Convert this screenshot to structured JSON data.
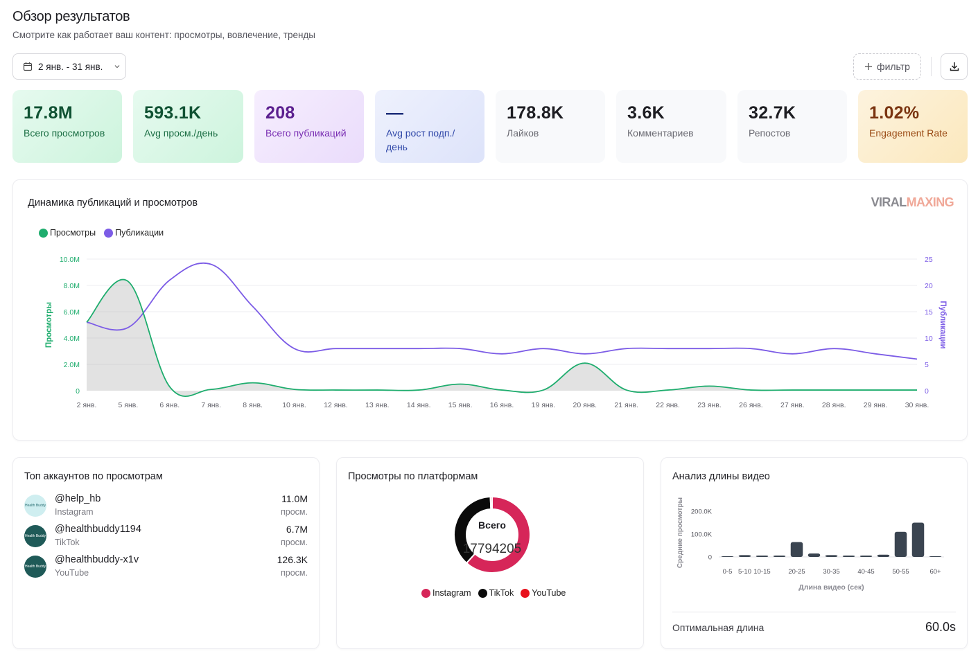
{
  "header": {
    "title": "Обзор результатов",
    "subtitle": "Смотрите как работает ваш контент: просмотры, вовлечение, тренды"
  },
  "toolbar": {
    "date_range": "2 янв. - 31 янв.",
    "filter_label": "фильтр"
  },
  "kpis": [
    {
      "value": "17.8M",
      "label": "Всего просмотров"
    },
    {
      "value": "593.1K",
      "label": "Avg просм./день"
    },
    {
      "value": "208",
      "label": "Всего публикаций"
    },
    {
      "value": "—",
      "label": "Avg рост подп./ день"
    },
    {
      "value": "178.8K",
      "label": "Лайков"
    },
    {
      "value": "3.6K",
      "label": "Комментариев"
    },
    {
      "value": "32.7K",
      "label": "Репостов"
    },
    {
      "value": "1.02%",
      "label": "Engagement Rate"
    }
  ],
  "trend_card": {
    "title": "Динамика публикаций и просмотров",
    "brand_part1": "VIRAL",
    "brand_part2": "MAXING"
  },
  "colors": {
    "views": "#1fad6e",
    "posts": "#7c5ce6",
    "instagram": "#d62659",
    "tiktok": "#0b0b0b",
    "youtube": "#e8111c",
    "bars": "#3a4450"
  },
  "chart_data": [
    {
      "type": "line",
      "title": "Динамика публикаций и просмотров",
      "categories": [
        "2 янв.",
        "5 янв.",
        "6 янв.",
        "7 янв.",
        "8 янв.",
        "10 янв.",
        "12 янв.",
        "13 янв.",
        "14 янв.",
        "15 янв.",
        "16 янв.",
        "19 янв.",
        "20 янв.",
        "21 янв.",
        "22 янв.",
        "23 янв.",
        "26 янв.",
        "27 янв.",
        "28 янв.",
        "29 янв.",
        "30 янв."
      ],
      "series": [
        {
          "name": "Просмотры",
          "axis": "left",
          "values": [
            5.2,
            8.3,
            0.3,
            0.1,
            0.6,
            0.1,
            0.05,
            0.05,
            0.05,
            0.5,
            0.05,
            0.05,
            2.1,
            0.05,
            0.05,
            0.35,
            0.05,
            0.05,
            0.05,
            0.05,
            0.05
          ]
        },
        {
          "name": "Публикации",
          "axis": "right",
          "values": [
            13,
            12,
            21,
            24,
            16,
            8,
            8,
            8,
            8,
            8,
            7,
            8,
            7,
            8,
            8,
            8,
            8,
            7,
            8,
            7,
            6
          ]
        }
      ],
      "ylabel": "Просмотры",
      "y2label": "Публикации",
      "y_ticks": [
        "0",
        "2.0M",
        "4.0M",
        "6.0M",
        "8.0M",
        "10.0M"
      ],
      "y2_ticks": [
        "0",
        "5",
        "10",
        "15",
        "20",
        "25"
      ],
      "ylim": [
        0,
        10
      ],
      "y2lim": [
        0,
        25
      ],
      "legend": "top-left"
    },
    {
      "type": "pie",
      "title": "Просмотры по платформам",
      "center_label": "Всего",
      "center_value": "17794205",
      "labels": [
        "Instagram",
        "TikTok",
        "YouTube"
      ],
      "values": [
        11.0,
        6.7,
        0.126
      ]
    },
    {
      "type": "bar",
      "title": "Анализ длины видео",
      "categories": [
        "0-5",
        "5-10",
        "10-15",
        "15-20",
        "20-25",
        "25-30",
        "30-35",
        "35-40",
        "40-45",
        "45-50",
        "50-55",
        "55-60",
        "60+"
      ],
      "tick_labels": [
        "0-5",
        "5-10",
        "10-15",
        "",
        "20-25",
        "",
        "30-35",
        "",
        "40-45",
        "",
        "50-55",
        "",
        "60+"
      ],
      "values": [
        0,
        8,
        1,
        2,
        65,
        15,
        8,
        2,
        2,
        10,
        110,
        150,
        0
      ],
      "bar_values_note": "",
      "xlabel": "Длина видео (сек)",
      "ylabel": "Средние просмотры",
      "y_ticks": [
        "0",
        "100.0K",
        "200.0K"
      ],
      "ylim": [
        0,
        200
      ]
    }
  ],
  "top_accounts": {
    "title": "Топ аккаунтов по просмотрам",
    "unit": "просм.",
    "items": [
      {
        "name": "@help_hb",
        "platform": "Instagram",
        "value": "11.0M",
        "avatar_text": "Health Buddy"
      },
      {
        "name": "@healthbuddy1194",
        "platform": "TikTok",
        "value": "6.7M",
        "avatar_text": "Health Buddy"
      },
      {
        "name": "@healthbuddy-x1v",
        "platform": "YouTube",
        "value": "126.3K",
        "avatar_text": "Health Buddy"
      }
    ]
  },
  "platforms": {
    "title": "Просмотры по платформам"
  },
  "length_analysis": {
    "title": "Анализ длины видео",
    "optimal_label": "Оптимальная длина",
    "optimal_value": "60.0s"
  }
}
